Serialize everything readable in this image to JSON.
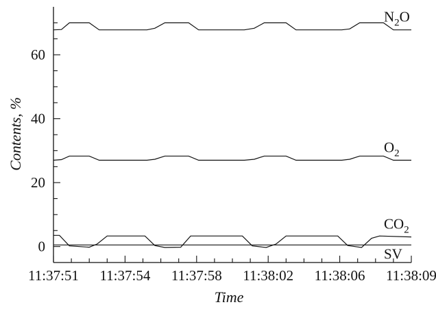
{
  "chart_data": {
    "type": "line",
    "xlabel": "Time",
    "ylabel": "Contents, %",
    "x_tick_labels": [
      "11:37:51",
      "11:37:54",
      "11:37:58",
      "11:38:02",
      "11:38:06",
      "11:38:09"
    ],
    "y_ticks": [
      0,
      20,
      40,
      60
    ],
    "ylim": [
      -5,
      75
    ],
    "xlim": [
      0,
      18
    ],
    "grid": false,
    "series": [
      {
        "name": "N2O",
        "label_main": "N",
        "label_sub": "2",
        "label_tail": "O",
        "x": [
          0,
          0.4,
          0.8,
          1.8,
          2.3,
          4.7,
          5.1,
          5.6,
          6.8,
          7.3,
          9.6,
          10.1,
          10.6,
          11.7,
          12.2,
          14.5,
          14.9,
          15.4,
          16.6,
          17.1,
          18
        ],
        "values": [
          67.8,
          67.9,
          70.0,
          70.0,
          67.8,
          67.8,
          68.3,
          70.0,
          70.0,
          67.8,
          67.8,
          68.3,
          70.0,
          70.0,
          67.8,
          67.8,
          68.1,
          70.0,
          70.0,
          67.8,
          67.8
        ]
      },
      {
        "name": "O2",
        "label_main": "O",
        "label_sub": "2",
        "label_tail": "",
        "x": [
          0,
          0.4,
          0.8,
          1.8,
          2.3,
          4.7,
          5.1,
          5.6,
          6.8,
          7.3,
          9.6,
          10.1,
          10.6,
          11.7,
          12.2,
          14.5,
          14.9,
          15.4,
          16.6,
          17.1,
          18
        ],
        "values": [
          27.0,
          27.2,
          28.3,
          28.3,
          27.0,
          27.0,
          27.3,
          28.3,
          28.3,
          27.0,
          27.0,
          27.3,
          28.3,
          28.3,
          27.0,
          27.0,
          27.3,
          28.3,
          28.3,
          27.0,
          27.0
        ]
      },
      {
        "name": "CO2",
        "label_main": "CO",
        "label_sub": "2",
        "label_tail": "",
        "x": [
          0,
          0.3,
          0.8,
          1.8,
          2.2,
          2.7,
          4.6,
          5.1,
          5.6,
          6.4,
          6.9,
          9.5,
          10.0,
          10.7,
          11.2,
          11.7,
          14.3,
          14.8,
          15.5,
          16.0,
          16.4,
          18
        ],
        "values": [
          3.5,
          3.5,
          0.2,
          -0.2,
          0.8,
          3.3,
          3.3,
          0.3,
          -0.3,
          -0.2,
          3.3,
          3.3,
          0.2,
          -0.3,
          0.8,
          3.3,
          3.3,
          0.3,
          -0.3,
          2.6,
          3.3,
          3.0
        ]
      },
      {
        "name": "SV",
        "label_main": "SV",
        "label_sub": "",
        "label_tail": "",
        "x": [
          0,
          18
        ],
        "values": [
          0.5,
          0.5
        ]
      }
    ]
  }
}
